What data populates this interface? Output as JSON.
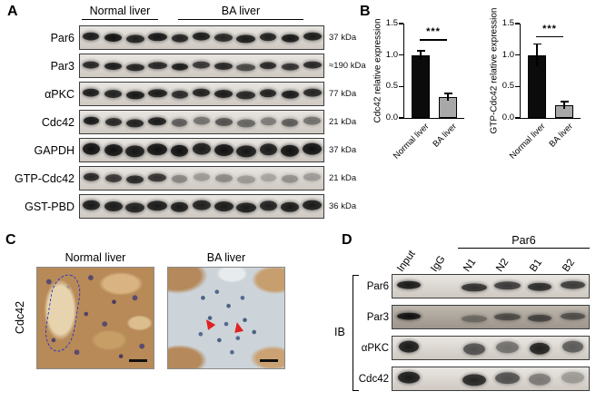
{
  "colors": {
    "bar_black": "#0b0b0b",
    "bar_gray": "#a8a8a8",
    "arrow_red": "#e02222",
    "outline_blue": "#2a35c8"
  },
  "panels": {
    "A": {
      "label": "A",
      "group1": "Normal liver",
      "group2": "BA liver",
      "rows": [
        {
          "protein": "Par6",
          "mw": "37 kDa",
          "band_h": 9,
          "band_w": 18,
          "bands": [
            0.9,
            0.95,
            0.88,
            0.92,
            0.87,
            0.9,
            0.85,
            0.9,
            0.88,
            0.92,
            0.9
          ]
        },
        {
          "protein": "Par3",
          "mw": "≈190 kDa",
          "band_h": 8,
          "band_w": 18,
          "bands": [
            0.85,
            0.9,
            0.87,
            0.85,
            0.9,
            0.78,
            0.85,
            0.7,
            0.85,
            0.8,
            0.85
          ]
        },
        {
          "protein": "αPKC",
          "mw": "77 kDa",
          "band_h": 9,
          "band_w": 18,
          "bands": [
            0.9,
            0.87,
            0.92,
            0.9,
            0.84,
            0.88,
            0.9,
            0.85,
            0.88,
            0.9,
            0.86
          ]
        },
        {
          "protein": "Cdc42",
          "mw": "21 kDa",
          "band_h": 9,
          "band_w": 17,
          "bands": [
            0.92,
            0.85,
            0.88,
            0.9,
            0.6,
            0.5,
            0.65,
            0.55,
            0.45,
            0.6,
            0.5
          ]
        },
        {
          "protein": "GAPDH",
          "mw": "37 kDa",
          "band_h": 13,
          "band_w": 19,
          "bands": [
            0.95,
            0.95,
            0.92,
            0.95,
            0.95,
            0.9,
            0.95,
            0.92,
            0.9,
            0.95,
            0.95
          ]
        },
        {
          "protein": "GTP-Cdc42",
          "mw": "21 kDa",
          "band_h": 9,
          "band_w": 17,
          "bands": [
            0.85,
            0.78,
            0.85,
            0.8,
            0.4,
            0.3,
            0.38,
            0.3,
            0.25,
            0.35,
            0.3
          ]
        },
        {
          "protein": "GST-PBD",
          "mw": "36 kDa",
          "band_h": 11,
          "band_w": 19,
          "bands": [
            0.9,
            0.9,
            0.88,
            0.9,
            0.9,
            0.88,
            0.9,
            0.9,
            0.88,
            0.9,
            0.9
          ]
        }
      ]
    },
    "B": {
      "label": "B"
    },
    "C": {
      "label": "C",
      "side_label": "Cdc42",
      "images": [
        {
          "title": "Normal liver"
        },
        {
          "title": "BA liver"
        }
      ]
    },
    "D": {
      "label": "D",
      "ib_label": "IB",
      "group_label": "Par6",
      "lanes": [
        "Input",
        "IgG",
        "N1",
        "N2",
        "B1",
        "B2"
      ],
      "rows": [
        {
          "protein": "Par6",
          "band_h": 9,
          "band_w": 26,
          "bands": [
            0.9,
            0,
            0.8,
            0.75,
            0.82,
            0.75
          ]
        },
        {
          "protein": "Par3",
          "band_h": 8,
          "band_w": 26,
          "dark": true,
          "bands": [
            0.95,
            0,
            0.4,
            0.6,
            0.65,
            0.58
          ]
        },
        {
          "protein": "αPKC",
          "band_h": 13,
          "band_w": 22,
          "bands": [
            0.9,
            0,
            0.65,
            0.5,
            0.88,
            0.6
          ]
        },
        {
          "protein": "Cdc42",
          "band_h": 13,
          "band_w": 24,
          "bands": [
            0.9,
            0,
            0.85,
            0.65,
            0.45,
            0.3
          ]
        }
      ]
    }
  },
  "chart_data": [
    {
      "type": "bar",
      "categories": [
        "Normal liver",
        "BA liver"
      ],
      "values": [
        1.0,
        0.33
      ],
      "errors": [
        0.07,
        0.06
      ],
      "title": "",
      "xlabel": "",
      "ylabel": "Cdc42 relative expression",
      "ylim": [
        0,
        1.5
      ],
      "yticks": [
        0,
        0.5,
        1.0,
        1.5
      ],
      "significance": "***",
      "sig_y": 1.25,
      "bar_colors": [
        "#0b0b0b",
        "#a8a8a8"
      ],
      "grid": false,
      "legend_position": "none"
    },
    {
      "type": "bar",
      "categories": [
        "Normal liver",
        "BA liver"
      ],
      "values": [
        1.0,
        0.2
      ],
      "errors": [
        0.18,
        0.06
      ],
      "title": "",
      "xlabel": "",
      "ylabel": "GTP-Cdc42 relative expression",
      "ylim": [
        0,
        1.5
      ],
      "yticks": [
        0,
        0.5,
        1.0,
        1.5
      ],
      "significance": "***",
      "sig_y": 1.3,
      "bar_colors": [
        "#0b0b0b",
        "#a8a8a8"
      ],
      "grid": false,
      "legend_position": "none"
    }
  ]
}
